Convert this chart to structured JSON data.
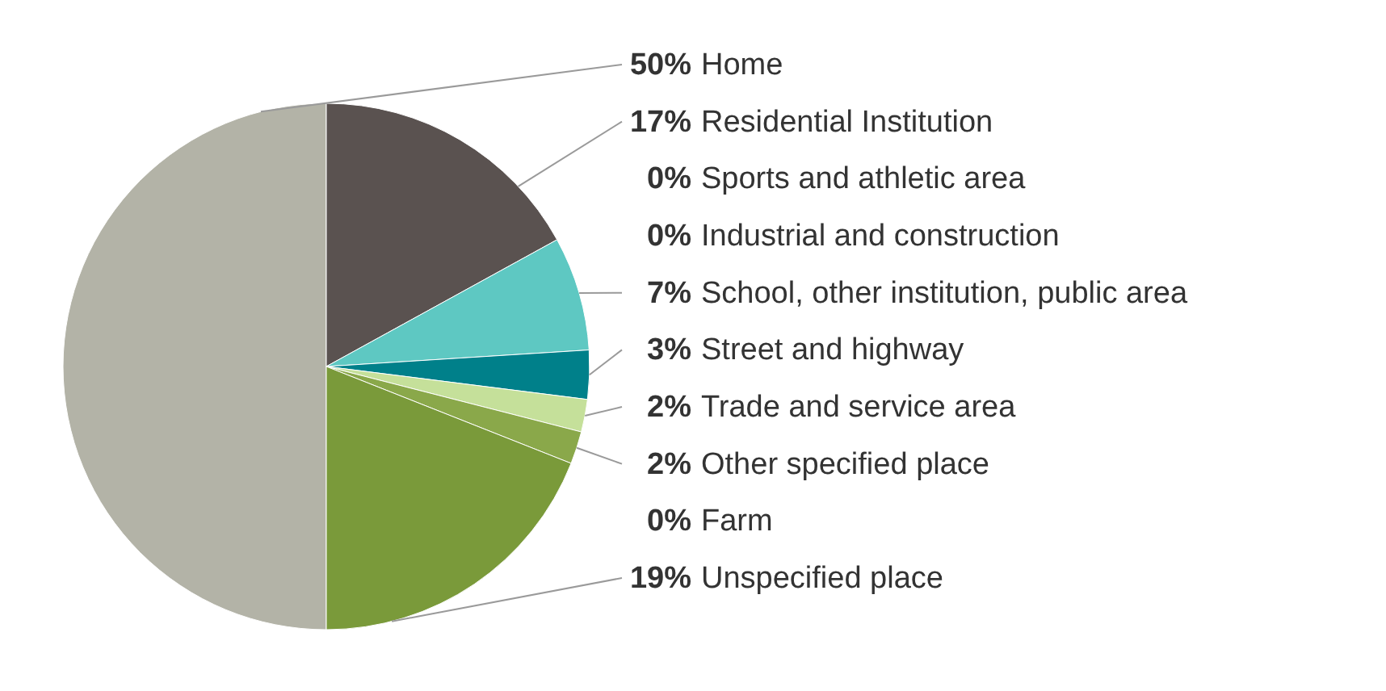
{
  "chart_data": {
    "type": "pie",
    "categories": [
      "Home",
      "Residential Institution",
      "Sports and athletic area",
      "Industrial and construction",
      "School, other institution, public area",
      "Street and highway",
      "Trade and service area",
      "Other specified place",
      "Farm",
      "Unspecified place"
    ],
    "values": [
      50,
      17,
      0,
      0,
      7,
      3,
      2,
      2,
      0,
      19
    ],
    "value_labels": [
      "50%",
      "17%",
      "0%",
      "0%",
      "7%",
      "3%",
      "2%",
      "2%",
      "0%",
      "19%"
    ],
    "colors": [
      "#b3b3a7",
      "#5a5250",
      "#9fb6a0",
      "#8c8c8c",
      "#5ec8c2",
      "#00808a",
      "#c5e09a",
      "#8aa84a",
      "#a0b070",
      "#7a9a3a"
    ]
  }
}
